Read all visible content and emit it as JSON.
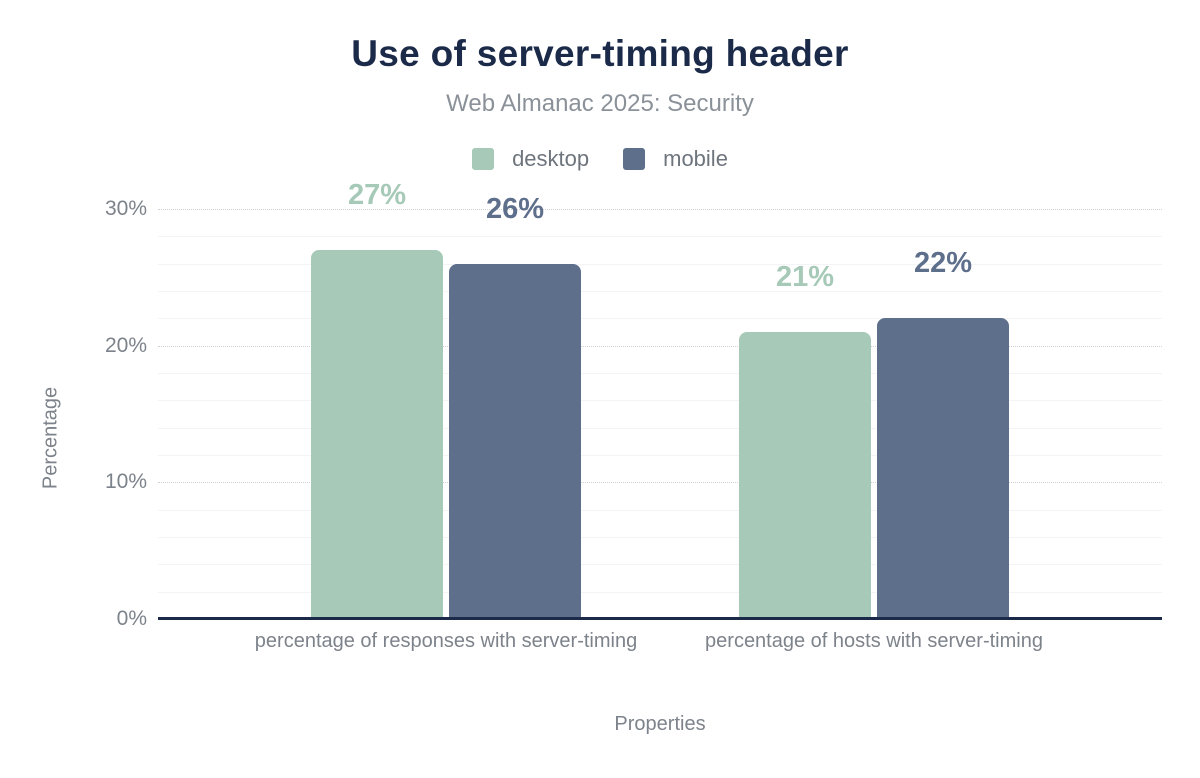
{
  "chart_data": {
    "type": "bar",
    "title": "Use of server-timing header",
    "subtitle": "Web Almanac 2025: Security",
    "categories": [
      "percentage of responses with server-timing",
      "percentage of hosts with server-timing"
    ],
    "series": [
      {
        "name": "desktop",
        "color": "#a6c9b8",
        "values": [
          27,
          21
        ]
      },
      {
        "name": "mobile",
        "color": "#5e6f8c",
        "values": [
          26,
          22
        ]
      }
    ],
    "data_labels": {
      "desktop": [
        "27%",
        "21%"
      ],
      "mobile": [
        "26%",
        "22%"
      ]
    },
    "value_suffix": "%",
    "xlabel": "Properties",
    "ylabel": "Percentage",
    "ylim": [
      0,
      31
    ],
    "yticks": [
      0,
      10,
      20,
      30
    ],
    "ytick_labels": [
      "0%",
      "10%",
      "20%",
      "30%"
    ],
    "grid": {
      "major_interval": 10,
      "minor_interval": 2,
      "major_style": "dotted",
      "minor_style": "solid"
    },
    "legend_position": "top"
  },
  "colors": {
    "title": "#1b2a48",
    "subtitle": "#8b9199",
    "axis_line": "#1b2a48",
    "tick_text": "#7d838b",
    "legend_text": "#6e757d",
    "desktop": "#a6c9b8",
    "mobile": "#5e6f8c",
    "grid_major": "#ced2d6",
    "grid_minor": "#f3f4f5",
    "background": "#ffffff"
  }
}
